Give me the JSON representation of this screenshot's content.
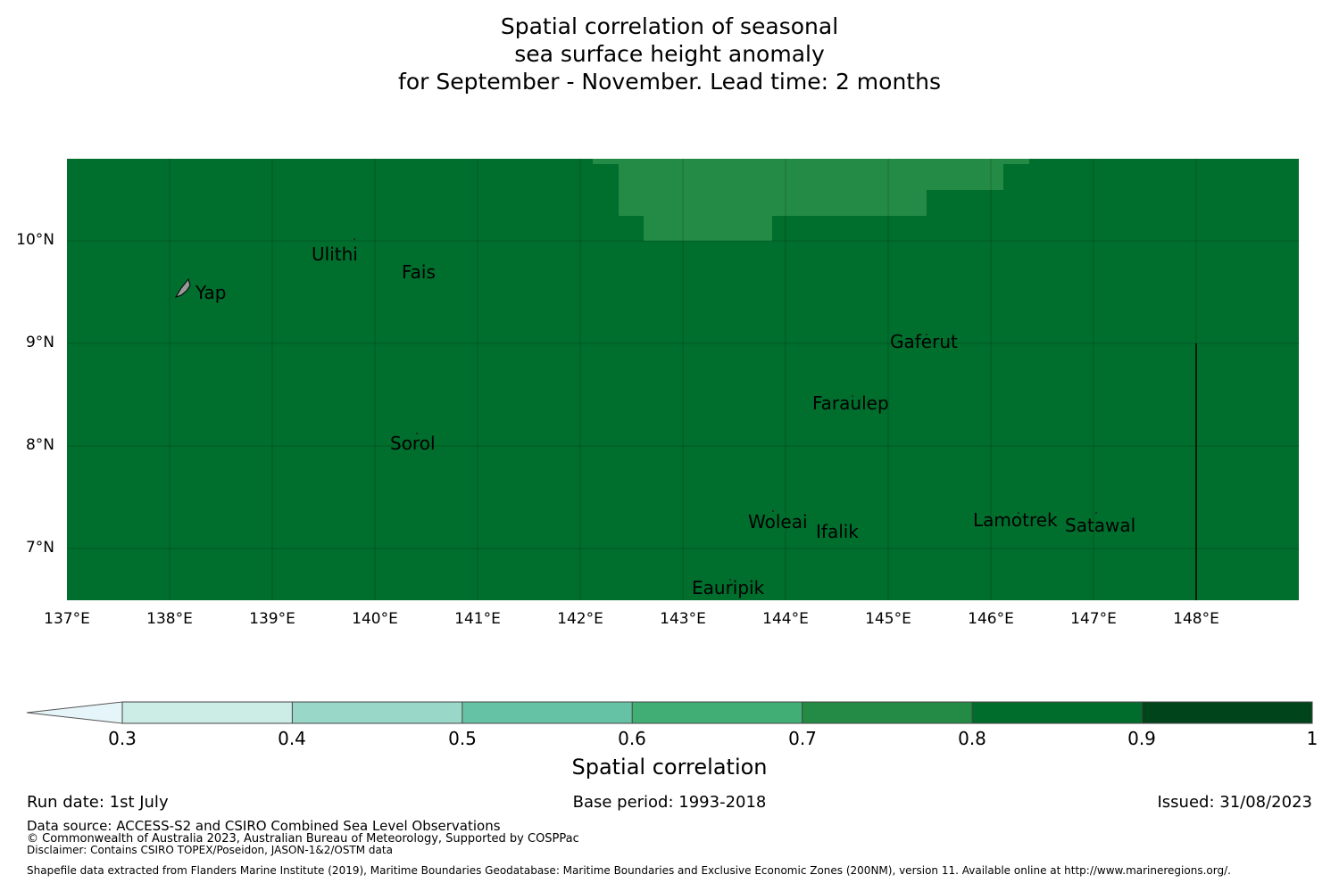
{
  "title": {
    "line1": "Spatial correlation of seasonal",
    "line2": "sea surface height anomaly",
    "line3": "for September - November. Lead time: 2 months"
  },
  "map": {
    "lon_range": [
      137,
      149
    ],
    "lat_range": [
      6.5,
      10.8
    ],
    "lat_ticks": [
      "10°N",
      "9°N",
      "8°N",
      "7°N"
    ],
    "lon_ticks": [
      "137°E",
      "138°E",
      "139°E",
      "140°E",
      "141°E",
      "142°E",
      "143°E",
      "144°E",
      "145°E",
      "146°E",
      "147°E",
      "148°E"
    ],
    "base_color": "#006e2d",
    "high_region_color": "#238b45",
    "places": [
      {
        "name": "Yap"
      },
      {
        "name": "Ulithi"
      },
      {
        "name": "Fais"
      },
      {
        "name": "Gaferut"
      },
      {
        "name": "Faraulep"
      },
      {
        "name": "Sorol"
      },
      {
        "name": "Woleai"
      },
      {
        "name": "Ifalik"
      },
      {
        "name": "Lamotrek"
      },
      {
        "name": "Satawal"
      },
      {
        "name": "Eauripik"
      }
    ]
  },
  "colorbar": {
    "ticks": [
      "0.3",
      "0.4",
      "0.5",
      "0.6",
      "0.7",
      "0.8",
      "0.9",
      "1"
    ],
    "colors": [
      "#e5f5f9",
      "#ccece6",
      "#99d8c9",
      "#66c2a4",
      "#41ae76",
      "#238b45",
      "#006d2c",
      "#00441b"
    ],
    "label": "Spatial correlation"
  },
  "footer": {
    "run_date": "Run date: 1st July",
    "base_period": "Base period: 1993-2018",
    "issued": "Issued: 31/08/2023",
    "data_source": "Data source: ACCESS-S2 and CSIRO Combined Sea Level Observations",
    "copyright": "© Commonwealth of Australia 2023, Australian Bureau of Meteorology, Supported by COSPPac",
    "disclaimer": "Disclaimer: Contains CSIRO TOPEX/Poseidon, JASON-1&2/OSTM data",
    "shapefile": "Shapefile data extracted from Flanders Marine Institute (2019), Maritime Boundaries Geodatabase: Maritime Boundaries and Exclusive Economic Zones (200NM), version 11. Available online at http://www.marineregions.org/."
  }
}
